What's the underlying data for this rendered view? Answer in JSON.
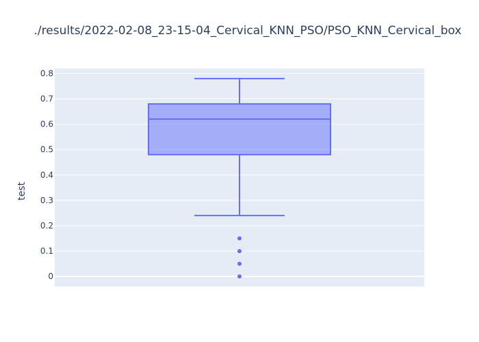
{
  "chart_data": {
    "type": "box",
    "title": "./results/2022-02-08_23-15-04_Cervical_KNN_PSO/PSO_KNN_Cervical_box",
    "ylabel": "test",
    "xlabel": "",
    "ylim": [
      -0.04,
      0.82
    ],
    "yticks": [
      0,
      0.1,
      0.2,
      0.3,
      0.4,
      0.5,
      0.6,
      0.7,
      0.8
    ],
    "ytick_labels": [
      "0",
      "0.1",
      "0.2",
      "0.3",
      "0.4",
      "0.5",
      "0.6",
      "0.7",
      "0.8"
    ],
    "grid": true,
    "box": {
      "lower_whisker": 0.24,
      "q1": 0.48,
      "median": 0.62,
      "q3": 0.68,
      "upper_whisker": 0.78,
      "outliers": [
        0.15,
        0.1,
        0.05,
        0
      ]
    },
    "colors": {
      "box_line": "#636efa",
      "box_fill": "rgba(99,110,250,0.5)",
      "plot_bg": "#e5ecf6",
      "grid": "#ffffff",
      "text": "#2a3f5f"
    }
  }
}
